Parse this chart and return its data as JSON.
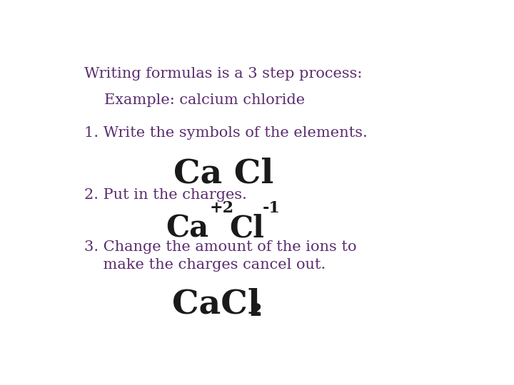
{
  "background_color": "#ffffff",
  "text_color": "#5B2C6F",
  "formula_color": "#1a1a1a",
  "title": "Writing formulas is a 3 step process:",
  "example": "Example: calcium chloride",
  "step1_label": "1. Write the symbols of the elements.",
  "step1_formula": "Ca Cl",
  "step2_label": "2. Put in the charges.",
  "step3_label_line1": "3. Change the amount of the ions to",
  "step3_label_line2": "    make the charges cancel out.",
  "title_fontsize": 15,
  "example_fontsize": 15,
  "step_label_fontsize": 15,
  "formula1_fontsize": 34,
  "formula2_fontsize": 30,
  "formula3_fontsize": 34,
  "sup_fontsize": 16,
  "sub_fontsize": 18
}
